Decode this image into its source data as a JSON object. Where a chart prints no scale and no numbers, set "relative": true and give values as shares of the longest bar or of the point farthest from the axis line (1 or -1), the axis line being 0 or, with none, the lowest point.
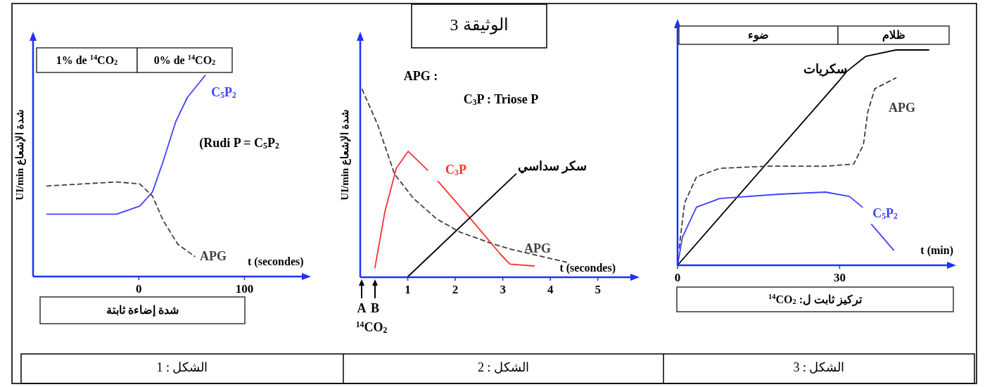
{
  "chart_data": [
    {
      "type": "line",
      "relative": true,
      "subtitle": "الشكل : 1",
      "xlabel": "t (secondes)",
      "ylabel": "شدة الإشعاع UI/min",
      "xlim": [
        -100,
        155
      ],
      "xticks": [
        0,
        100
      ],
      "legend": false,
      "annotations": [
        "(Rudi P = C$_{5}$P$_{2}$",
        "شدة إضاءة ثابتة",
        "1% de $^{14}$CO$_{2}$",
        "0% de $^{14}$CO$_{2}$"
      ],
      "series": [
        {
          "name": "C$_{5}$P$_{2}$",
          "color": "#4040ff",
          "line_style": "solid",
          "x": [
            -87,
            -21,
            1,
            13,
            23,
            35,
            46,
            63
          ],
          "values": [
            0.31,
            0.31,
            0.35,
            0.42,
            0.57,
            0.77,
            0.89,
            1.0
          ]
        },
        {
          "name": "APG",
          "color": "#404040",
          "line_style": "dashed",
          "x": [
            -87,
            -21,
            1,
            13,
            23,
            37,
            53
          ],
          "values": [
            0.45,
            0.47,
            0.46,
            0.4,
            0.28,
            0.16,
            0.1
          ]
        }
      ]
    },
    {
      "type": "line",
      "relative": true,
      "title": "الوثيقة 3",
      "subtitle": "الشكل : 2",
      "xlabel": "t (secondes)",
      "ylabel": "شدة الإشعاع UI/min",
      "xlim": [
        0,
        5.7
      ],
      "xticks": [
        1,
        2,
        3,
        4,
        5
      ],
      "legend": false,
      "annotations": [
        "A",
        "B",
        "$^{14}$CO$_{2}$",
        "APG :",
        "C$_{3}$P : Triose P"
      ],
      "series": [
        {
          "name": "APG",
          "color": "#404040",
          "line_style": "dashed",
          "x": [
            0.04,
            0.37,
            0.72,
            1.12,
            1.61,
            2.1,
            2.76,
            3.15,
            3.66,
            4.34
          ],
          "values": [
            1.0,
            0.81,
            0.55,
            0.42,
            0.31,
            0.24,
            0.18,
            0.15,
            0.12,
            0.08
          ]
        },
        {
          "name": "C$_{3}$P",
          "color": "#ff3030",
          "line_style": "solid",
          "x": [
            0.31,
            0.52,
            0.76,
            1.01,
            1.42,
            1.53,
            1.64,
            2.36,
            2.96,
            3.15,
            3.66
          ],
          "values": [
            0.05,
            0.35,
            0.58,
            0.67,
            0.57,
            null,
            0.51,
            0.3,
            0.12,
            0.07,
            0.06
          ]
        },
        {
          "name": "سكر سداسي",
          "color": "#000000",
          "line_style": "solid",
          "x": [
            0.99,
            3.28
          ],
          "values": [
            0.0,
            0.55
          ]
        }
      ]
    },
    {
      "type": "line",
      "relative": true,
      "subtitle": "الشكل : 3",
      "xlabel": "t (min)",
      "xlim": [
        0,
        50
      ],
      "xticks": [
        0,
        30
      ],
      "legend": false,
      "annotations": [
        "تركيز ثابت ل: $^{14}$CO$_{2}$",
        "ضوء",
        "ظلام"
      ],
      "series": [
        {
          "name": "سكريات",
          "color": "#000000",
          "line_style": "solid",
          "x": [
            0,
            30,
            31.3,
            34.8,
            40.4,
            46.5
          ],
          "values": [
            0.0,
            0.86,
            0.9,
            0.97,
            1.0,
            1.0
          ]
        },
        {
          "name": "APG",
          "color": "#404040",
          "line_style": "dashed",
          "x": [
            0.3,
            1.3,
            3.5,
            7.8,
            16.6,
            27.4,
            32.6,
            34.4,
            35.2,
            36.5,
            40.4
          ],
          "values": [
            0.08,
            0.29,
            0.41,
            0.45,
            0.46,
            0.46,
            0.47,
            0.56,
            0.71,
            0.82,
            0.87
          ]
        },
        {
          "name": "C$_{5}$P$_{2}$",
          "color": "#4040ff",
          "line_style": "solid",
          "x": [
            0,
            0.9,
            3.5,
            7.8,
            18.8,
            27.4,
            31.8,
            34.2,
            35,
            35.9,
            40
          ],
          "values": [
            0.0,
            0.13,
            0.27,
            0.31,
            0.33,
            0.34,
            0.32,
            0.27,
            null,
            0.19,
            0.07
          ]
        }
      ]
    }
  ]
}
